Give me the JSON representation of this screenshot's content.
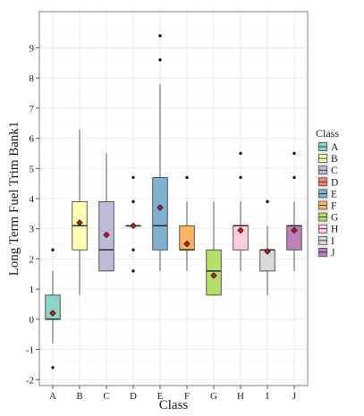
{
  "chart_data": {
    "type": "boxplot",
    "xlabel": "Class",
    "ylabel": "Long Term Fuel Trim Bank1",
    "categories": [
      "A",
      "B",
      "C",
      "D",
      "E",
      "F",
      "G",
      "H",
      "I",
      "J"
    ],
    "ylim": [
      -2.2,
      10.2
    ],
    "yticks": [
      "-2",
      "-1",
      "0",
      "1",
      "2",
      "3",
      "4",
      "5",
      "6",
      "7",
      "8",
      "9"
    ],
    "grid": true,
    "legend": {
      "title": "Class",
      "position": "right",
      "entries": [
        "A",
        "B",
        "C",
        "D",
        "E",
        "F",
        "G",
        "H",
        "I",
        "J"
      ]
    },
    "series": [
      {
        "category": "A",
        "color": "#8dd3c7",
        "whisker_low": -0.8,
        "q1": 0.0,
        "median": 0.0,
        "q3": 0.8,
        "whisker_high": 1.6,
        "mean": 0.2,
        "outliers": [
          2.3,
          -1.6
        ]
      },
      {
        "category": "B",
        "color": "#ffffb3",
        "whisker_low": 0.8,
        "q1": 2.3,
        "median": 3.1,
        "q3": 3.9,
        "whisker_high": 6.3,
        "mean": 3.2,
        "outliers": []
      },
      {
        "category": "C",
        "color": "#bebada",
        "whisker_low": 1.6,
        "q1": 1.6,
        "median": 2.3,
        "q3": 3.9,
        "whisker_high": 5.5,
        "mean": 2.8,
        "outliers": []
      },
      {
        "category": "D",
        "color": "#fb8072",
        "whisker_low": 3.1,
        "q1": 3.1,
        "median": 3.1,
        "q3": 3.1,
        "whisker_high": 3.1,
        "mean": 3.1,
        "outliers": [
          4.7,
          3.9,
          2.3,
          1.6
        ]
      },
      {
        "category": "E",
        "color": "#80b1d3",
        "whisker_low": 1.6,
        "q1": 2.3,
        "median": 3.1,
        "q3": 4.7,
        "whisker_high": 7.8,
        "mean": 3.7,
        "outliers": [
          9.4,
          8.6
        ]
      },
      {
        "category": "F",
        "color": "#fdb462",
        "whisker_low": 1.6,
        "q1": 2.3,
        "median": 2.3,
        "q3": 3.1,
        "whisker_high": 3.9,
        "mean": 2.5,
        "outliers": [
          4.7
        ]
      },
      {
        "category": "G",
        "color": "#b3de69",
        "whisker_low": 0.8,
        "q1": 0.8,
        "median": 1.6,
        "q3": 2.3,
        "whisker_high": 3.9,
        "mean": 1.45,
        "outliers": []
      },
      {
        "category": "H",
        "color": "#fccde5",
        "whisker_low": 1.6,
        "q1": 2.3,
        "median": 3.1,
        "q3": 3.1,
        "whisker_high": 3.9,
        "mean": 2.95,
        "outliers": [
          5.5,
          4.7
        ]
      },
      {
        "category": "I",
        "color": "#d9d9d9",
        "whisker_low": 0.8,
        "q1": 1.6,
        "median": 2.3,
        "q3": 2.3,
        "whisker_high": 3.1,
        "mean": 2.25,
        "outliers": [
          3.9
        ]
      },
      {
        "category": "J",
        "color": "#bc80bd",
        "whisker_low": 1.6,
        "q1": 2.3,
        "median": 3.1,
        "q3": 3.1,
        "whisker_high": 3.9,
        "mean": 2.95,
        "outliers": [
          5.5,
          4.7
        ]
      }
    ],
    "mean_marker_color": "#d7191c"
  }
}
